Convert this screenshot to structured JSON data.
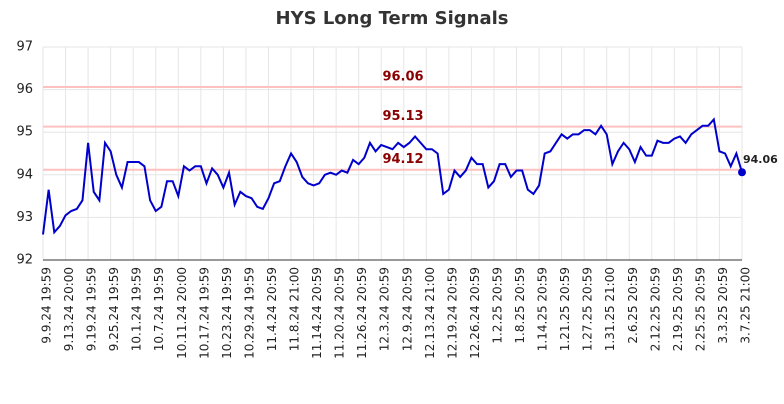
{
  "chart_data": {
    "type": "line",
    "title": "HYS Long Term Signals",
    "categories": [
      "9.9.24 19:59",
      null,
      null,
      null,
      "9.13.24 20:00",
      null,
      null,
      null,
      "9.19.24 19:59",
      null,
      null,
      null,
      "9.25.24 19:59",
      null,
      null,
      null,
      "10.1.24 19:59",
      null,
      null,
      null,
      "10.7.24 19:59",
      null,
      null,
      null,
      "10.11.24 20:00",
      null,
      null,
      null,
      "10.17.24 19:59",
      null,
      null,
      null,
      "10.23.24 19:59",
      null,
      null,
      null,
      "10.29.24 19:59",
      null,
      null,
      null,
      "11.4.24 20:59",
      null,
      null,
      null,
      "11.8.24 21:00",
      null,
      null,
      null,
      "11.14.24 20:59",
      null,
      null,
      null,
      "11.20.24 20:59",
      null,
      null,
      null,
      "11.26.24 20:59",
      null,
      null,
      null,
      "12.3.24 20:59",
      null,
      null,
      null,
      "12.9.24 20:59",
      null,
      null,
      null,
      "12.13.24 21:00",
      null,
      null,
      null,
      "12.19.24 20:59",
      null,
      null,
      null,
      "12.26.24 20:59",
      null,
      null,
      null,
      "1.2.25 20:59",
      null,
      null,
      null,
      "1.8.25 20:59",
      null,
      null,
      null,
      "1.14.25 20:59",
      null,
      null,
      null,
      "1.21.25 20:59",
      null,
      null,
      null,
      "1.27.25 20:59",
      null,
      null,
      null,
      "1.31.25 21:00",
      null,
      null,
      null,
      "2.6.25 20:59",
      null,
      null,
      null,
      "2.12.25 20:59",
      null,
      null,
      null,
      "2.19.25 20:59",
      null,
      null,
      null,
      "2.25.25 20:59",
      null,
      null,
      null,
      "3.3.25 20:59",
      null,
      null,
      null,
      "3.7.25 21:00"
    ],
    "values": [
      92.6,
      93.65,
      92.65,
      92.8,
      93.05,
      93.15,
      93.2,
      93.4,
      94.75,
      93.6,
      93.4,
      94.75,
      94.55,
      94.0,
      93.7,
      94.3,
      94.3,
      94.3,
      94.2,
      93.4,
      93.15,
      93.25,
      93.85,
      93.85,
      93.5,
      94.2,
      94.1,
      94.2,
      94.2,
      93.8,
      94.15,
      94.0,
      93.7,
      94.05,
      93.3,
      93.6,
      93.5,
      93.45,
      93.25,
      93.2,
      93.45,
      93.8,
      93.85,
      94.2,
      94.5,
      94.3,
      93.95,
      93.8,
      93.75,
      93.8,
      94.0,
      94.05,
      94.0,
      94.1,
      94.05,
      94.35,
      94.25,
      94.4,
      94.75,
      94.55,
      94.7,
      94.65,
      94.6,
      94.75,
      94.65,
      94.75,
      94.9,
      94.75,
      94.6,
      94.6,
      94.5,
      93.55,
      93.65,
      94.1,
      93.95,
      94.1,
      94.4,
      94.25,
      94.25,
      93.7,
      93.85,
      94.25,
      94.25,
      93.95,
      94.1,
      94.1,
      93.65,
      93.55,
      93.75,
      94.5,
      94.55,
      94.75,
      94.95,
      94.85,
      94.95,
      94.95,
      95.05,
      95.05,
      94.95,
      95.15,
      94.95,
      94.25,
      94.55,
      94.75,
      94.6,
      94.3,
      94.65,
      94.45,
      94.45,
      94.8,
      94.75,
      94.75,
      94.85,
      94.9,
      94.75,
      94.95,
      95.05,
      95.15,
      95.15,
      95.3,
      94.55,
      94.5,
      94.2,
      94.5,
      94.06
    ],
    "color": "#0000cc",
    "hlines": [
      96.06,
      95.13,
      94.12
    ],
    "hline_color": "#ffc0c0",
    "hline_label_color": "#8b0000",
    "ylim": [
      92,
      97
    ],
    "yticks": [
      92,
      93,
      94,
      95,
      96,
      97
    ],
    "grid": true
  }
}
